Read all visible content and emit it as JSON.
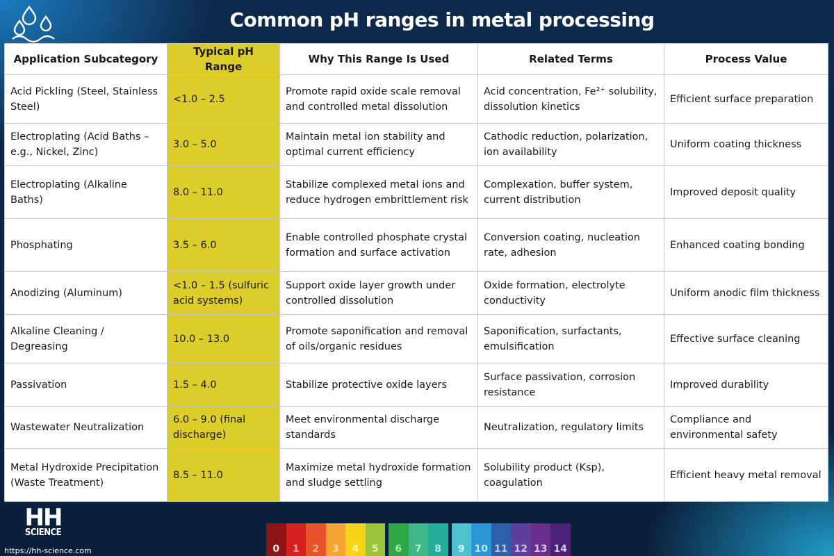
{
  "title": "Common pH ranges in metal processing",
  "table": {
    "headers": [
      "Application Subcategory",
      "Typical pH Range",
      "Why This Range Is Used",
      "Related Terms",
      "Process Value"
    ],
    "rows": [
      [
        "Acid Pickling (Steel, Stainless Steel)",
        "<1.0 – 2.5",
        "Promote rapid oxide scale removal and controlled metal dissolution",
        "Acid concentration, Fe²⁺ solubility, dissolution kinetics",
        "Efficient surface preparation"
      ],
      [
        "Electroplating (Acid Baths – e.g., Nickel, Zinc)",
        "3.0 – 5.0",
        "Maintain metal ion stability and optimal current efficiency",
        "Cathodic reduction, polarization, ion availability",
        "Uniform coating thickness"
      ],
      [
        "Electroplating (Alkaline Baths)",
        "8.0 – 11.0",
        "Stabilize complexed metal ions and reduce hydrogen embrittlement risk",
        "Complexation, buffer system, current distribution",
        "Improved deposit quality"
      ],
      [
        "Phosphating",
        "3.5 – 6.0",
        "Enable controlled phosphate crystal formation and surface activation",
        "Conversion coating, nucleation rate, adhesion",
        "Enhanced coating bonding"
      ],
      [
        "Anodizing (Aluminum)",
        "<1.0 – 1.5 (sulfuric acid systems)",
        "Support oxide layer growth under controlled dissolution",
        "Oxide formation, electrolyte conductivity",
        "Uniform anodic film thickness"
      ],
      [
        "Alkaline Cleaning / Degreasing",
        "10.0 – 13.0",
        "Promote saponification and removal of oils/organic residues",
        "Saponification, surfactants, emulsification",
        "Effective surface cleaning"
      ],
      [
        "Passivation",
        "1.5 – 4.0",
        "Stabilize protective oxide layers",
        "Surface passivation, corrosion resistance",
        "Improved durability"
      ],
      [
        "Wastewater Neutralization",
        "6.0 – 9.0 (final discharge)",
        "Meet environmental discharge standards",
        "Neutralization, regulatory limits",
        "Compliance and environmental safety"
      ],
      [
        "Metal Hydroxide Precipitation (Waste Treatment)",
        "8.5 – 11.0",
        "Maximize metal hydroxide formation and sludge settling",
        "Solubility product (Ksp), coagulation",
        "Efficient heavy metal removal"
      ]
    ]
  },
  "logo": {
    "line1": "HH",
    "line2": "SCIENCE"
  },
  "website": "https://hh-science.com",
  "ph_scale": [
    {
      "label": "0",
      "color": "#8b1414",
      "text": "#f0f0f0"
    },
    {
      "label": "1",
      "color": "#d62020",
      "text": "#f4a0a0"
    },
    {
      "label": "2",
      "color": "#e8522a",
      "text": "#f8b08a"
    },
    {
      "label": "3",
      "color": "#f5a431",
      "text": "#fce0a0"
    },
    {
      "label": "4",
      "color": "#f7d417",
      "text": "#fff8a0"
    },
    {
      "label": "5",
      "color": "#9cc53c",
      "text": "#e0f0b0"
    },
    {
      "label": "6",
      "color": "#2ea845",
      "text": "#b0e8b8"
    },
    {
      "label": "7",
      "color": "#3db886",
      "text": "#c0f0d8"
    },
    {
      "label": "8",
      "color": "#23ad9b",
      "text": "#b0ece4"
    },
    {
      "label": "9",
      "color": "#4fc2cf",
      "text": "#d0f4f8"
    },
    {
      "label": "10",
      "color": "#2a96d6",
      "text": "#c0e4f8"
    },
    {
      "label": "11",
      "color": "#2f5fa8",
      "text": "#b8c8ec"
    },
    {
      "label": "12",
      "color": "#5c3f9c",
      "text": "#d0c0f0"
    },
    {
      "label": "13",
      "color": "#6a2f8c",
      "text": "#dcc0ec"
    },
    {
      "label": "14",
      "color": "#4b2177",
      "text": "#d4c4e8"
    }
  ],
  "colors": {
    "background": "#0b2545",
    "ph_column": "#dccd2b",
    "title": "#ffffff"
  }
}
